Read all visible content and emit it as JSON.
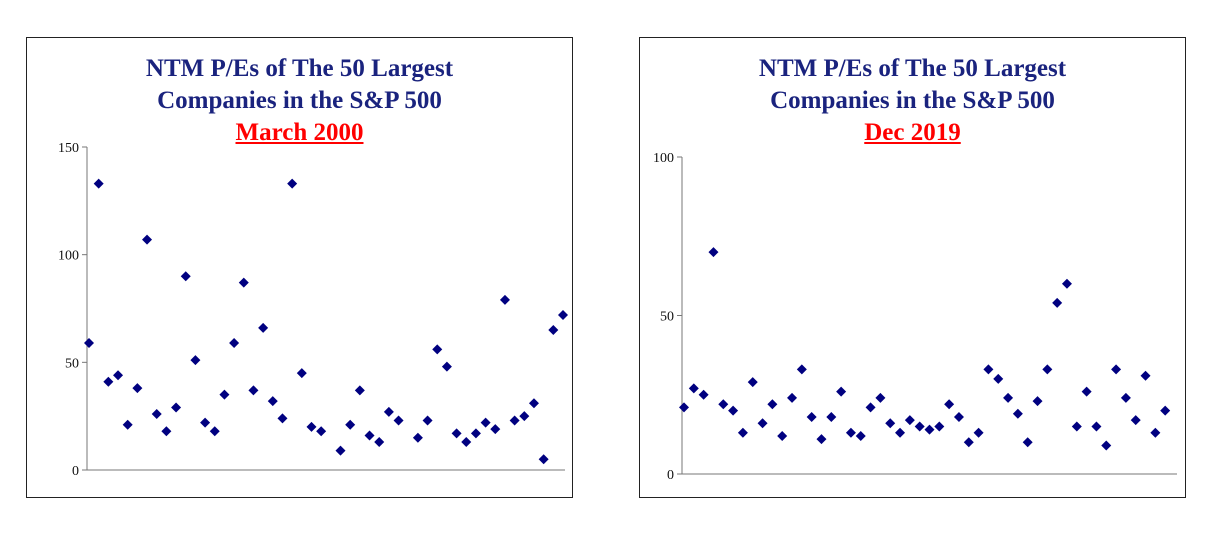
{
  "chart_data": [
    {
      "type": "scatter",
      "title": "NTM P/Es of The 50 Largest Companies in the S&P 500",
      "title_lines": [
        "NTM P/Es of The 50 Largest",
        "Companies in the S&P 500"
      ],
      "subtitle": "March 2000",
      "ylim": [
        0,
        150
      ],
      "yticks": [
        0,
        50,
        100,
        150
      ],
      "grid": false,
      "marker_color": "#000080",
      "title_color": "#1a237e",
      "subtitle_color": "#ff0000",
      "x": [
        1,
        2,
        3,
        4,
        5,
        6,
        7,
        8,
        9,
        10,
        11,
        12,
        13,
        14,
        15,
        16,
        17,
        18,
        19,
        20,
        21,
        22,
        23,
        24,
        25,
        26,
        27,
        28,
        29,
        30,
        31,
        32,
        33,
        34,
        35,
        36,
        37,
        38,
        39,
        40,
        41,
        42,
        43,
        44,
        45,
        46,
        47,
        48,
        49,
        50
      ],
      "values": [
        59,
        133,
        41,
        44,
        21,
        38,
        107,
        26,
        18,
        29,
        90,
        51,
        22,
        18,
        35,
        59,
        87,
        37,
        66,
        32,
        24,
        133,
        45,
        20,
        18,
        null,
        9,
        21,
        37,
        16,
        13,
        27,
        23,
        null,
        15,
        23,
        56,
        48,
        17,
        13,
        17,
        22,
        19,
        79,
        23,
        25,
        31,
        5,
        65,
        72
      ]
    },
    {
      "type": "scatter",
      "title": "NTM P/Es of The 50 Largest Companies in the S&P 500",
      "title_lines": [
        "NTM P/Es of The 50 Largest",
        "Companies in the S&P 500"
      ],
      "subtitle": "Dec 2019",
      "ylim": [
        0,
        100
      ],
      "yticks": [
        0,
        50,
        100
      ],
      "grid": false,
      "marker_color": "#000080",
      "title_color": "#1a237e",
      "subtitle_color": "#ff0000",
      "x": [
        1,
        2,
        3,
        4,
        5,
        6,
        7,
        8,
        9,
        10,
        11,
        12,
        13,
        14,
        15,
        16,
        17,
        18,
        19,
        20,
        21,
        22,
        23,
        24,
        25,
        26,
        27,
        28,
        29,
        30,
        31,
        32,
        33,
        34,
        35,
        36,
        37,
        38,
        39,
        40,
        41,
        42,
        43,
        44,
        45,
        46,
        47,
        48,
        49,
        50,
        51
      ],
      "values": [
        21,
        27,
        25,
        70,
        22,
        20,
        13,
        29,
        16,
        22,
        12,
        24,
        33,
        18,
        11,
        18,
        26,
        13,
        12,
        21,
        24,
        16,
        13,
        17,
        15,
        14,
        15,
        22,
        18,
        10,
        13,
        33,
        30,
        24,
        19,
        10,
        23,
        33,
        54,
        60,
        15,
        26,
        15,
        9,
        33,
        24,
        17,
        31,
        13,
        20,
        null
      ]
    }
  ]
}
